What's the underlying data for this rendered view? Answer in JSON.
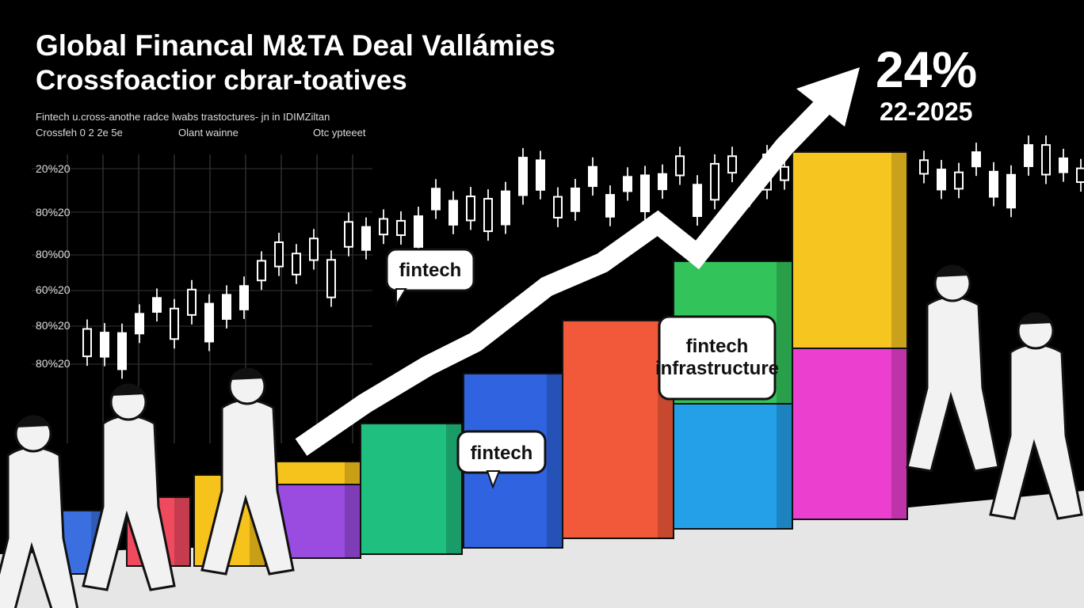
{
  "header": {
    "title": "Global Financal M&TA Deal Vallámies",
    "subtitle": "Crossfoactior cbrar-toatives",
    "caption": "Fintech u.cross-anothe radce lwabs trastoctures- jn in IDIMZiltan",
    "legend": [
      "Crossfeh 0 2 2e 5e",
      "Olant wainne",
      "Otc ypteeet"
    ]
  },
  "axis_labels": [
    "20%20",
    "80%20",
    "80%00",
    "60%20",
    "80%20",
    "80%20"
  ],
  "callouts": [
    {
      "lines": [
        "fintech"
      ]
    },
    {
      "lines": [
        "fintech"
      ]
    },
    {
      "lines": [
        "fintech",
        "infrastructure"
      ]
    }
  ],
  "stat": {
    "value": "24%",
    "period": "22-2025"
  }
}
